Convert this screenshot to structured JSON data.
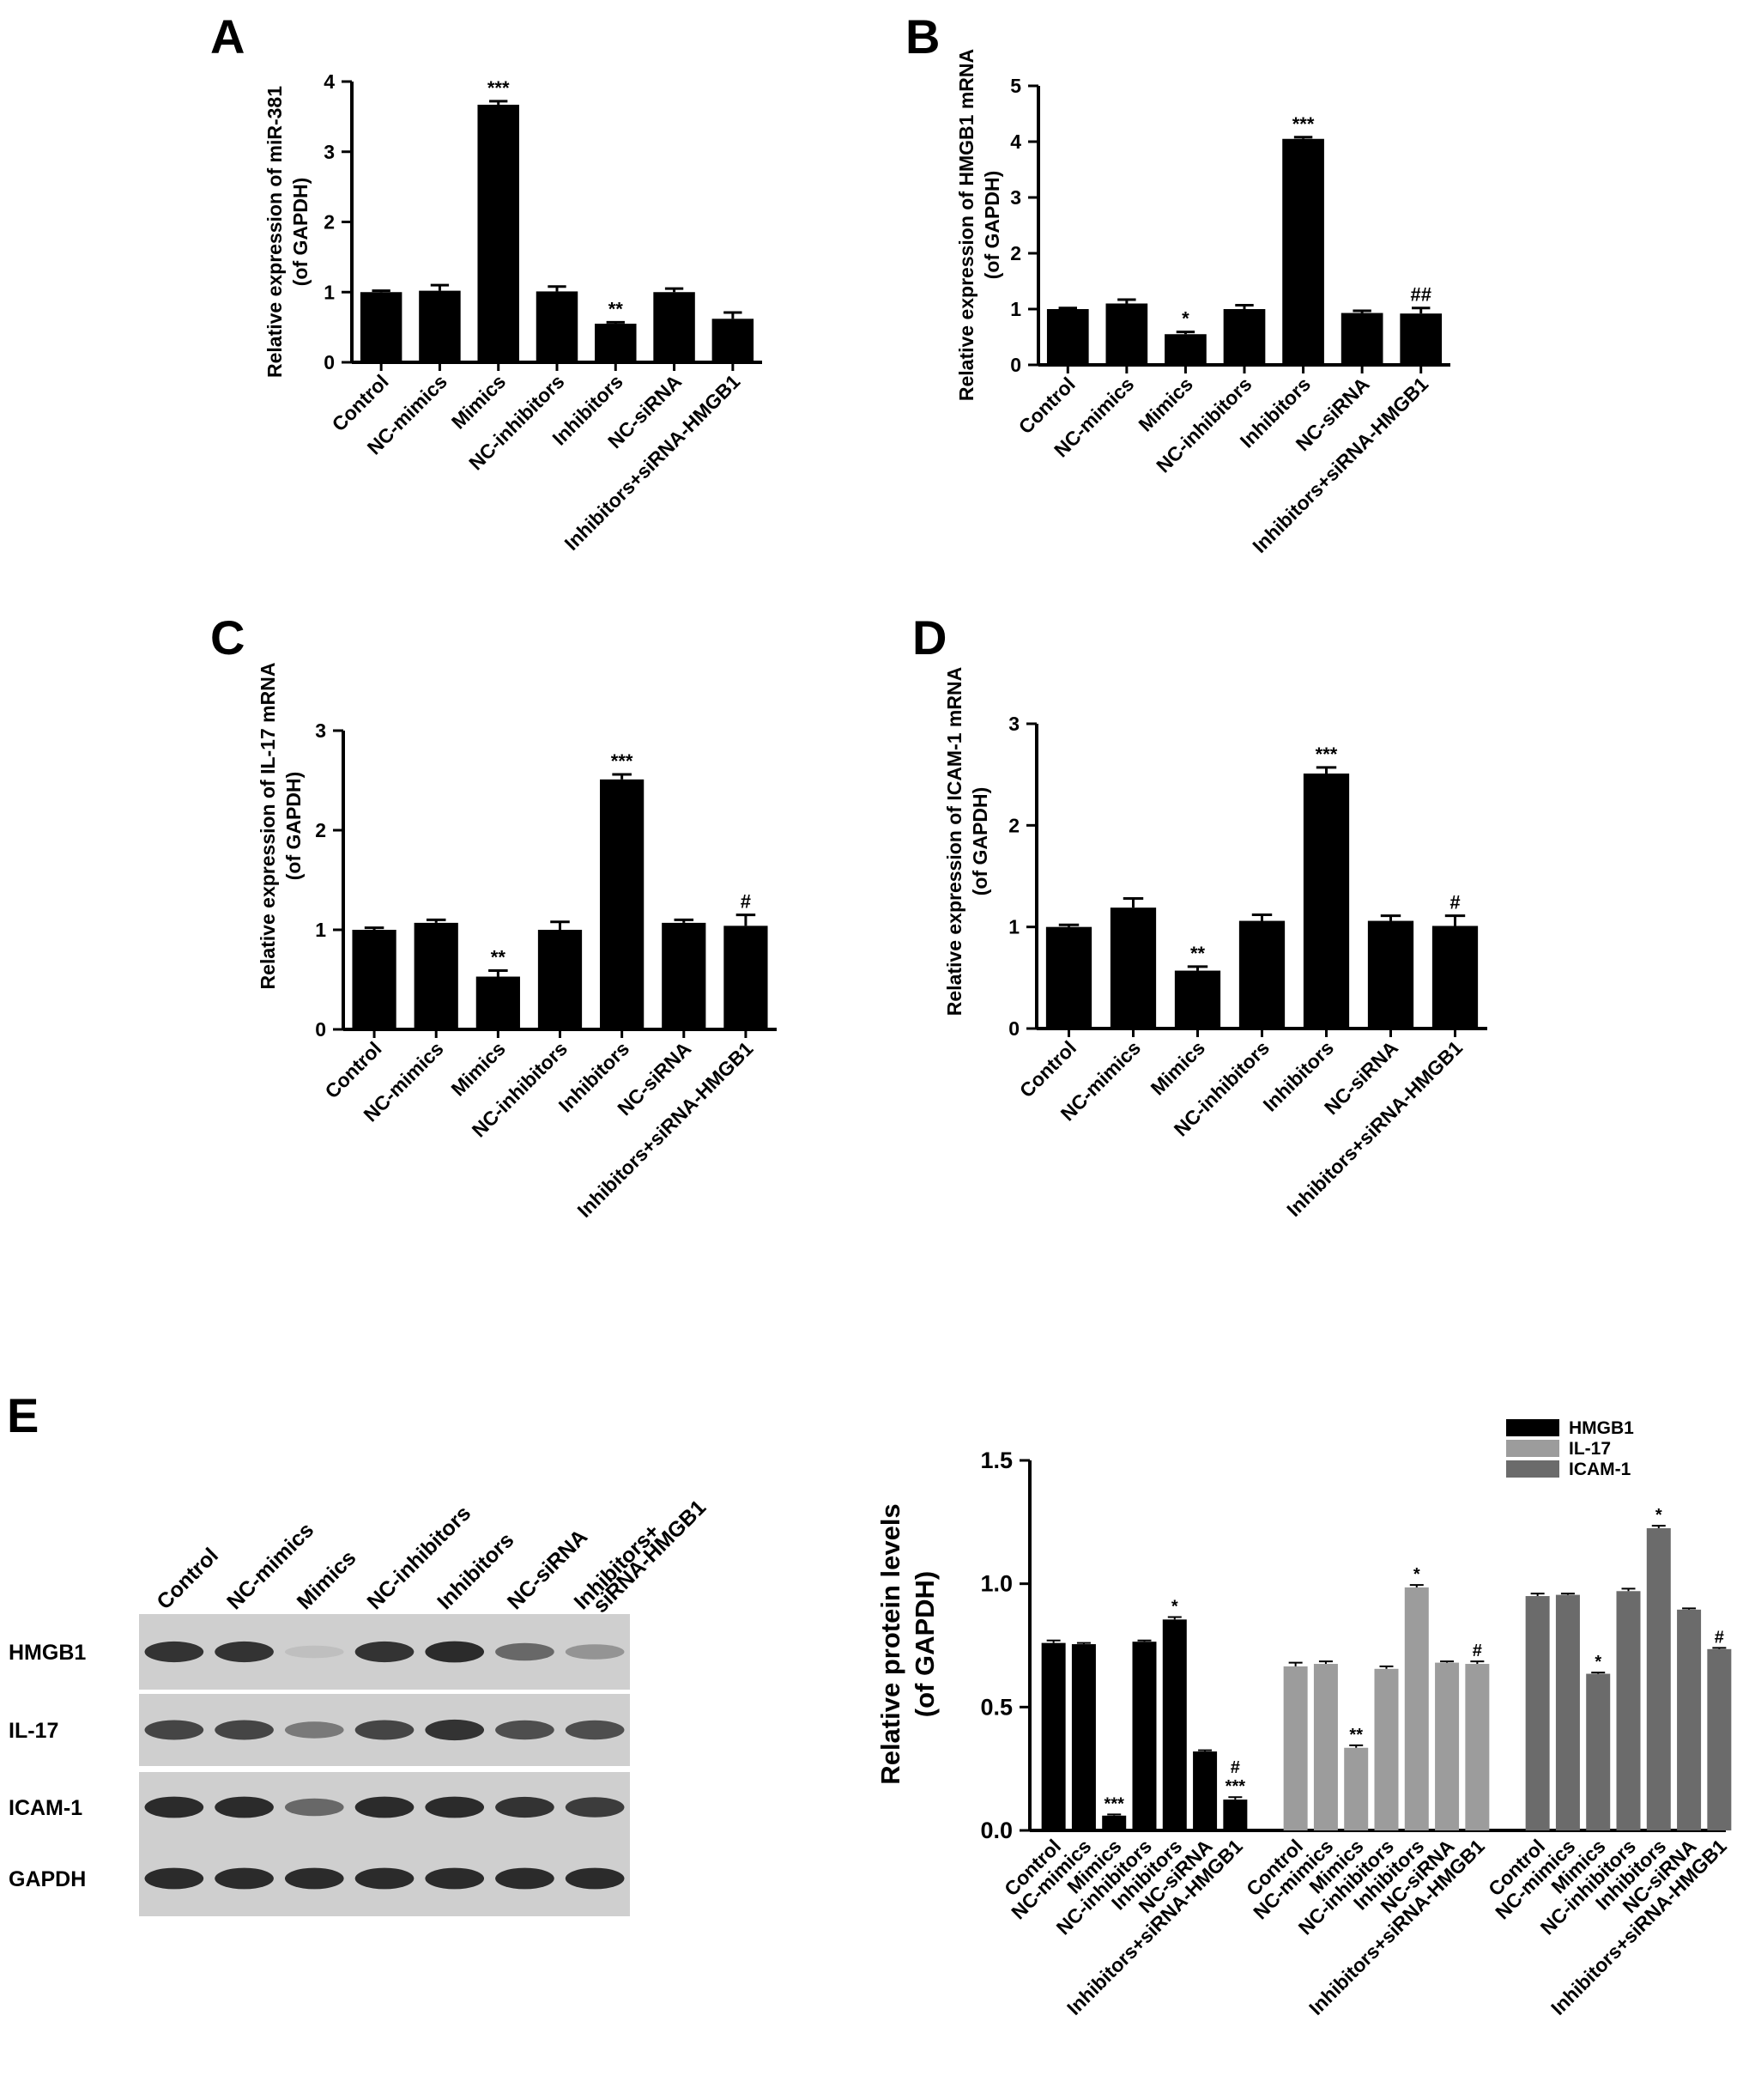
{
  "panels": [
    {
      "id": "A",
      "letter": "A",
      "ylabel_line1": "Relative expression of miR-381",
      "ylabel_line2": "(of GAPDH)"
    },
    {
      "id": "B",
      "letter": "B",
      "ylabel_line1": "Relative expression of HMGB1 mRNA",
      "ylabel_line2": "(of GAPDH)"
    },
    {
      "id": "C",
      "letter": "C",
      "ylabel_line1": "Relative expression of IL-17 mRNA",
      "ylabel_line2": "(of GAPDH)"
    },
    {
      "id": "D",
      "letter": "D",
      "ylabel_line1": "Relative expression of ICAM-1 mRNA",
      "ylabel_line2": "(of GAPDH)"
    },
    {
      "id": "E",
      "letter": "E"
    }
  ],
  "western_blot": {
    "lane_labels": [
      "Control",
      "NC-mimics",
      "Mimics",
      "NC-inhibitors",
      "Inhibitors",
      "NC-siRNA",
      "Inhibitors+ siRNA-HMGB1"
    ],
    "rows": [
      {
        "label": "HMGB1",
        "intensity": [
          0.85,
          0.85,
          0.05,
          0.85,
          0.9,
          0.55,
          0.3
        ]
      },
      {
        "label": "IL-17",
        "intensity": [
          0.75,
          0.75,
          0.45,
          0.75,
          0.85,
          0.7,
          0.7
        ]
      },
      {
        "label": "ICAM-1",
        "intensity": [
          0.9,
          0.9,
          0.55,
          0.9,
          0.9,
          0.85,
          0.8
        ]
      },
      {
        "label": "GAPDH",
        "intensity": [
          0.9,
          0.9,
          0.9,
          0.9,
          0.9,
          0.9,
          0.9
        ]
      }
    ]
  },
  "chart_data": [
    {
      "id": "A",
      "type": "bar",
      "categories": [
        "Control",
        "NC-mimics",
        "Mimics",
        "NC-inhibitors",
        "Inhibitors",
        "NC-siRNA",
        "Inhibitors+siRNA-HMGB1"
      ],
      "values": [
        1.0,
        1.02,
        3.67,
        1.01,
        0.55,
        1.0,
        0.62
      ],
      "errors": [
        0.02,
        0.08,
        0.05,
        0.07,
        0.02,
        0.05,
        0.09
      ],
      "annotations": [
        "",
        "",
        "***",
        "",
        "**",
        "",
        ""
      ],
      "ylim": [
        0,
        4
      ],
      "yticks": [
        0,
        1,
        2,
        3,
        4
      ],
      "ylabel": "Relative expression of miR-381 (of GAPDH)",
      "xlabel": "",
      "color": "#000000"
    },
    {
      "id": "B",
      "type": "bar",
      "categories": [
        "Control",
        "NC-mimics",
        "Mimics",
        "NC-inhibitors",
        "Inhibitors",
        "NC-siRNA",
        "Inhibitors+siRNA-HMGB1"
      ],
      "values": [
        1.0,
        1.1,
        0.55,
        1.0,
        4.05,
        0.93,
        0.92
      ],
      "errors": [
        0.02,
        0.07,
        0.04,
        0.07,
        0.03,
        0.04,
        0.1
      ],
      "annotations": [
        "",
        "",
        "*",
        "",
        "***",
        "",
        "##"
      ],
      "ylim": [
        0,
        5
      ],
      "yticks": [
        0,
        1,
        2,
        3,
        4,
        5
      ],
      "ylabel": "Relative expression of HMGB1 mRNA (of GAPDH)",
      "xlabel": "",
      "color": "#000000"
    },
    {
      "id": "C",
      "type": "bar",
      "categories": [
        "Control",
        "NC-mimics",
        "Mimics",
        "NC-inhibitors",
        "Inhibitors",
        "NC-siRNA",
        "Inhibitors+siRNA-HMGB1"
      ],
      "values": [
        1.0,
        1.07,
        0.53,
        1.0,
        2.51,
        1.07,
        1.04
      ],
      "errors": [
        0.02,
        0.03,
        0.06,
        0.08,
        0.05,
        0.03,
        0.11
      ],
      "annotations": [
        "",
        "",
        "**",
        "",
        "***",
        "",
        "#"
      ],
      "ylim": [
        0,
        3
      ],
      "yticks": [
        0,
        1,
        2,
        3
      ],
      "ylabel": "Relative expression of IL-17 mRNA (of GAPDH)",
      "xlabel": "",
      "color": "#000000"
    },
    {
      "id": "D",
      "type": "bar",
      "categories": [
        "Control",
        "NC-mimics",
        "Mimics",
        "NC-inhibitors",
        "Inhibitors",
        "NC-siRNA",
        "Inhibitors+siRNA-HMGB1"
      ],
      "values": [
        1.0,
        1.19,
        0.57,
        1.06,
        2.51,
        1.06,
        1.01
      ],
      "errors": [
        0.02,
        0.09,
        0.04,
        0.06,
        0.06,
        0.05,
        0.1
      ],
      "annotations": [
        "",
        "",
        "**",
        "",
        "***",
        "",
        "#"
      ],
      "ylim": [
        0,
        3
      ],
      "yticks": [
        0,
        1,
        2,
        3
      ],
      "ylabel": "Relative expression of ICAM-1 mRNA (of GAPDH)",
      "xlabel": "",
      "color": "#000000"
    },
    {
      "id": "E",
      "type": "bar",
      "categories": [
        "Control",
        "NC-mimics",
        "Mimics",
        "NC-inhibitors",
        "Inhibitors",
        "NC-siRNA",
        "Inhibitors+siRNA-HMGB1"
      ],
      "series": [
        {
          "name": "HMGB1",
          "color": "#000000",
          "values": [
            0.76,
            0.755,
            0.06,
            0.765,
            0.855,
            0.32,
            0.125
          ],
          "errors": [
            0.01,
            0.005,
            0.005,
            0.005,
            0.01,
            0.005,
            0.01
          ],
          "annotations": [
            "",
            "",
            "***",
            "",
            "*",
            "",
            "#|***"
          ]
        },
        {
          "name": "IL-17",
          "color": "#9c9c9c",
          "values": [
            0.665,
            0.675,
            0.335,
            0.655,
            0.985,
            0.68,
            0.675
          ],
          "errors": [
            0.015,
            0.01,
            0.01,
            0.01,
            0.01,
            0.005,
            0.01
          ],
          "annotations": [
            "",
            "",
            "**",
            "",
            "*",
            "",
            "#"
          ]
        },
        {
          "name": "ICAM-1",
          "color": "#6b6b6b",
          "values": [
            0.95,
            0.955,
            0.635,
            0.97,
            1.225,
            0.895,
            0.735
          ],
          "errors": [
            0.01,
            0.005,
            0.005,
            0.01,
            0.01,
            0.005,
            0.005
          ],
          "annotations": [
            "",
            "",
            "*",
            "",
            "*",
            "",
            "#"
          ]
        }
      ],
      "ylim": [
        0,
        1.5
      ],
      "yticks": [
        "0.0",
        "0.5",
        "1.0",
        "1.5"
      ],
      "ylabel": "Relative protein levels (of  GAPDH)",
      "xlabel": "",
      "legend_position": "top-right"
    }
  ]
}
